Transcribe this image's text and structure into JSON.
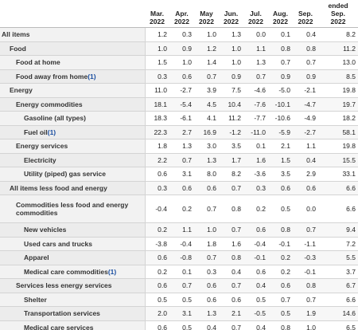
{
  "table": {
    "columns": [
      [
        "Mar.",
        "2022"
      ],
      [
        "Apr.",
        "2022"
      ],
      [
        "May",
        "2022"
      ],
      [
        "Jun.",
        "2022"
      ],
      [
        "Jul.",
        "2022"
      ],
      [
        "Aug.",
        "2022"
      ],
      [
        "Sep.",
        "2022"
      ],
      [
        "ended",
        "Sep.",
        "2022"
      ]
    ],
    "rows": [
      {
        "label": "All items",
        "values": [
          "1.2",
          "0.3",
          "1.0",
          "1.3",
          "0.0",
          "0.1",
          "0.4",
          "8.2"
        ]
      },
      {
        "label": "Food",
        "values": [
          "1.0",
          "0.9",
          "1.2",
          "1.0",
          "1.1",
          "0.8",
          "0.8",
          "11.2"
        ]
      },
      {
        "label": "Food at home",
        "values": [
          "1.5",
          "1.0",
          "1.4",
          "1.0",
          "1.3",
          "0.7",
          "0.7",
          "13.0"
        ]
      },
      {
        "label": "Food away from home",
        "note": "(1)",
        "values": [
          "0.3",
          "0.6",
          "0.7",
          "0.9",
          "0.7",
          "0.9",
          "0.9",
          "8.5"
        ]
      },
      {
        "label": "Energy",
        "values": [
          "11.0",
          "-2.7",
          "3.9",
          "7.5",
          "-4.6",
          "-5.0",
          "-2.1",
          "19.8"
        ]
      },
      {
        "label": "Energy commodities",
        "values": [
          "18.1",
          "-5.4",
          "4.5",
          "10.4",
          "-7.6",
          "-10.1",
          "-4.7",
          "19.7"
        ]
      },
      {
        "label": "Gasoline (all types)",
        "values": [
          "18.3",
          "-6.1",
          "4.1",
          "11.2",
          "-7.7",
          "-10.6",
          "-4.9",
          "18.2"
        ]
      },
      {
        "label": "Fuel oil",
        "note": "(1)",
        "values": [
          "22.3",
          "2.7",
          "16.9",
          "-1.2",
          "-11.0",
          "-5.9",
          "-2.7",
          "58.1"
        ]
      },
      {
        "label": "Energy services",
        "values": [
          "1.8",
          "1.3",
          "3.0",
          "3.5",
          "0.1",
          "2.1",
          "1.1",
          "19.8"
        ]
      },
      {
        "label": "Electricity",
        "values": [
          "2.2",
          "0.7",
          "1.3",
          "1.7",
          "1.6",
          "1.5",
          "0.4",
          "15.5"
        ]
      },
      {
        "label": "Utility (piped) gas service",
        "values": [
          "0.6",
          "3.1",
          "8.0",
          "8.2",
          "-3.6",
          "3.5",
          "2.9",
          "33.1"
        ]
      },
      {
        "label": "All items less food and energy",
        "values": [
          "0.3",
          "0.6",
          "0.6",
          "0.7",
          "0.3",
          "0.6",
          "0.6",
          "6.6"
        ]
      },
      {
        "label": "Commodities less food and energy commodities",
        "values": [
          "-0.4",
          "0.2",
          "0.7",
          "0.8",
          "0.2",
          "0.5",
          "0.0",
          "6.6"
        ]
      },
      {
        "label": "New vehicles",
        "values": [
          "0.2",
          "1.1",
          "1.0",
          "0.7",
          "0.6",
          "0.8",
          "0.7",
          "9.4"
        ]
      },
      {
        "label": "Used cars and trucks",
        "values": [
          "-3.8",
          "-0.4",
          "1.8",
          "1.6",
          "-0.4",
          "-0.1",
          "-1.1",
          "7.2"
        ]
      },
      {
        "label": "Apparel",
        "values": [
          "0.6",
          "-0.8",
          "0.7",
          "0.8",
          "-0.1",
          "0.2",
          "-0.3",
          "5.5"
        ]
      },
      {
        "label": "Medical care commodities",
        "note": "(1)",
        "values": [
          "0.2",
          "0.1",
          "0.3",
          "0.4",
          "0.6",
          "0.2",
          "-0.1",
          "3.7"
        ]
      },
      {
        "label": "Services less energy services",
        "values": [
          "0.6",
          "0.7",
          "0.6",
          "0.7",
          "0.4",
          "0.6",
          "0.8",
          "6.7"
        ]
      },
      {
        "label": "Shelter",
        "values": [
          "0.5",
          "0.5",
          "0.6",
          "0.6",
          "0.5",
          "0.7",
          "0.7",
          "6.6"
        ]
      },
      {
        "label": "Transportation services",
        "values": [
          "2.0",
          "3.1",
          "1.3",
          "2.1",
          "-0.5",
          "0.5",
          "1.9",
          "14.6"
        ]
      },
      {
        "label": "Medical care services",
        "values": [
          "0.6",
          "0.5",
          "0.4",
          "0.7",
          "0.4",
          "0.8",
          "1.0",
          "6.5"
        ]
      }
    ]
  }
}
